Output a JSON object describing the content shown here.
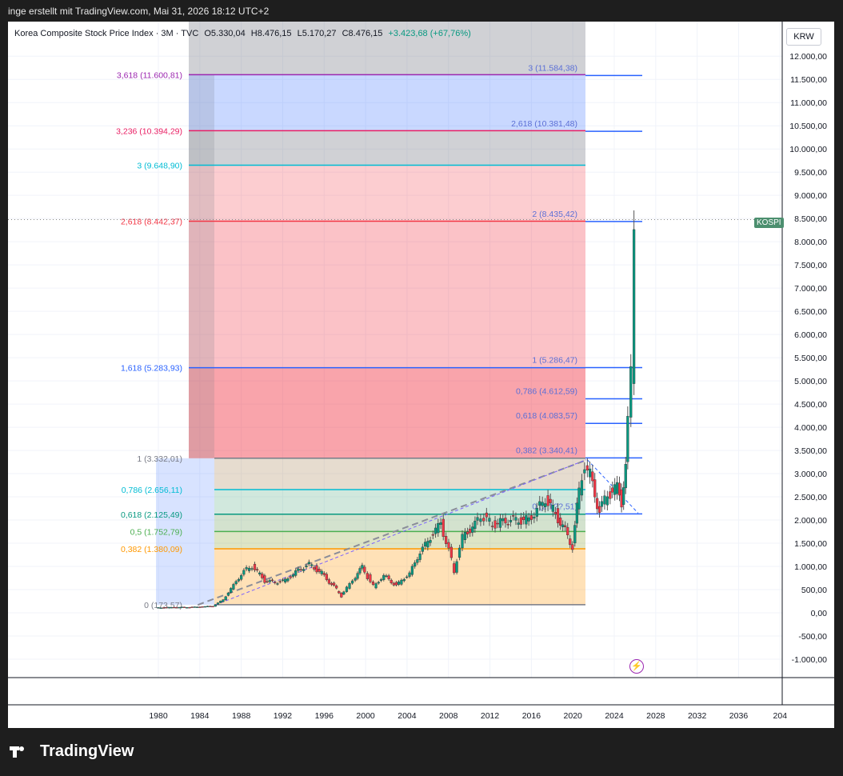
{
  "header": {
    "byline": "inge erstellt mit TradingView.com, Mai 31, 2026 18:12 UTC+2"
  },
  "chart_header": {
    "symbol": "Korea Composite Stock Price Index · 3M · TVC",
    "open": "O5.330,04",
    "high": "H8.476,15",
    "low": "L5.170,27",
    "close": "C8.476,15",
    "change": "+3.423,68 (+67,76%)"
  },
  "currency_label": "KRW",
  "price_badge": "KOSPI",
  "brand": "TradingView",
  "chart_data": {
    "type": "candlestick",
    "x_axis": {
      "labels": [
        "1980",
        "1984",
        "1988",
        "1992",
        "1996",
        "2000",
        "2004",
        "2008",
        "2012",
        "2016",
        "2020",
        "2024",
        "2028",
        "2032",
        "2036",
        "204"
      ],
      "range": [
        1978.6,
        2040.5
      ]
    },
    "y_axis": {
      "labels": [
        "12.000,00",
        "11.500,00",
        "11.000,00",
        "10.500,00",
        "10.000,00",
        "9.500,00",
        "9.000,00",
        "8.500,00",
        "8.000,00",
        "7.500,00",
        "7.000,00",
        "6.500,00",
        "6.000,00",
        "5.500,00",
        "5.000,00",
        "4.500,00",
        "4.000,00",
        "3.500,00",
        "3.000,00",
        "2.500,00",
        "2.000,00",
        "1.500,00",
        "1.000,00",
        "500,00",
        "0,00",
        "-500,00",
        "-1.000,00"
      ],
      "range": [
        -1500,
        12300
      ]
    },
    "last_price": 8476.15,
    "series_points": [
      [
        1980,
        110
      ],
      [
        1984,
        125
      ],
      [
        1985.5,
        145
      ],
      [
        1986.5,
        280
      ],
      [
        1987.5,
        600
      ],
      [
        1988.5,
        900
      ],
      [
        1989.3,
        1000
      ],
      [
        1990.5,
        700
      ],
      [
        1991.5,
        650
      ],
      [
        1992.5,
        700
      ],
      [
        1993.5,
        880
      ],
      [
        1994.8,
        1050
      ],
      [
        1996,
        850
      ],
      [
        1997.9,
        380
      ],
      [
        1999,
        700
      ],
      [
        1999.9,
        1000
      ],
      [
        2001,
        560
      ],
      [
        2002,
        800
      ],
      [
        2003.2,
        590
      ],
      [
        2004.5,
        850
      ],
      [
        2005.5,
        1300
      ],
      [
        2007.5,
        1950
      ],
      [
        2008.8,
        900
      ],
      [
        2009.6,
        1650
      ],
      [
        2010.8,
        1900
      ],
      [
        2011.4,
        2100
      ],
      [
        2012.5,
        1900
      ],
      [
        2014,
        2000
      ],
      [
        2016,
        2000
      ],
      [
        2017.6,
        2450
      ],
      [
        2018.8,
        2050
      ],
      [
        2020.2,
        1450
      ],
      [
        2020.6,
        2300
      ],
      [
        2021.4,
        3200
      ],
      [
        2021.9,
        2950
      ],
      [
        2022.8,
        2200
      ],
      [
        2023.6,
        2550
      ],
      [
        2024.5,
        2700
      ],
      [
        2024.9,
        2400
      ],
      [
        2025.3,
        3200
      ],
      [
        2025.6,
        4100
      ],
      [
        2025.9,
        5200
      ],
      [
        2026.25,
        8476
      ]
    ],
    "fib_retracement": {
      "levels": [
        {
          "label": "0 (173,57)",
          "value": 173.57,
          "color": "#787b86"
        },
        {
          "label": "0,382 (1.380,09)",
          "value": 1380.09,
          "color": "#ff9800"
        },
        {
          "label": "0,5 (1.752,79)",
          "value": 1752.79,
          "color": "#4caf50"
        },
        {
          "label": "0,618 (2.125,49)",
          "value": 2125.49,
          "color": "#089981"
        },
        {
          "label": "0,786 (2.656,11)",
          "value": 2656.11,
          "color": "#00bcd4"
        },
        {
          "label": "1 (3.332,01)",
          "value": 3332.01,
          "color": "#787b86"
        },
        {
          "label": "1,618 (5.283,93)",
          "value": 5283.93,
          "color": "#2962ff"
        },
        {
          "label": "2,618 (8.442,37)",
          "value": 8442.37,
          "color": "#f23645"
        },
        {
          "label": "3 (9.648,90)",
          "value": 9648.9,
          "color": "#00bcd4"
        },
        {
          "label": "3,236 (10.394,29)",
          "value": 10394.29,
          "color": "#e91e63"
        },
        {
          "label": "3,618 (11.600,81)",
          "value": 11600.81,
          "color": "#9c27b0"
        }
      ]
    },
    "fib_extension": {
      "levels": [
        {
          "label": "0 (2.1??,51)",
          "value": 2131.51
        },
        {
          "label": "0,382 (3.340,41)",
          "value": 3340.41
        },
        {
          "label": "0,618 (4.083,57)",
          "value": 4083.57
        },
        {
          "label": "0,786 (4.612,59)",
          "value": 4612.59
        },
        {
          "label": "1 (5.286,47)",
          "value": 5286.47
        },
        {
          "label": "2 (8.435,42)",
          "value": 8435.42
        },
        {
          "label": "2,618 (10.381,48)",
          "value": 10381.48
        },
        {
          "label": "3 (11.584,38)",
          "value": 11584.38
        }
      ],
      "color": "#2962ff"
    }
  }
}
